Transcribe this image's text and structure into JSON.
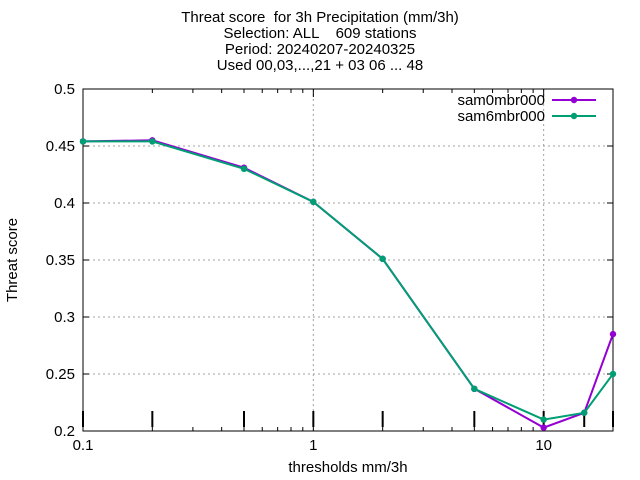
{
  "chart_data": {
    "type": "line",
    "title_lines": [
      "Threat score  for 3h Precipitation (mm/3h)",
      "Selection: ALL    609 stations",
      "Period: 20240207-20240325",
      "Used 00,03,...,21 + 03 06 ... 48"
    ],
    "xlabel": "thresholds mm/3h",
    "ylabel": "Threat score",
    "x_scale": "log",
    "xlim": [
      0.1,
      20
    ],
    "ylim": [
      0.2,
      0.5
    ],
    "x_ticks": [
      0.1,
      1,
      10
    ],
    "x_tick_labels": [
      "0.1",
      "1",
      "10"
    ],
    "y_ticks": [
      0.2,
      0.25,
      0.3,
      0.35,
      0.4,
      0.45,
      0.5
    ],
    "y_tick_labels": [
      "0.2",
      "0.25",
      "0.3",
      "0.35",
      "0.4",
      "0.45",
      "0.5"
    ],
    "grid": true,
    "legend_position": "top-right",
    "x": [
      0.1,
      0.2,
      0.5,
      1,
      2,
      5,
      10,
      15,
      20
    ],
    "series": [
      {
        "name": "sam0mbr000",
        "color": "#9400d3",
        "values": [
          0.454,
          0.455,
          0.431,
          0.401,
          0.351,
          0.237,
          0.203,
          0.216,
          0.285
        ]
      },
      {
        "name": "sam6mbr000",
        "color": "#009e73",
        "values": [
          0.454,
          0.454,
          0.43,
          0.401,
          0.351,
          0.237,
          0.21,
          0.216,
          0.25
        ]
      }
    ]
  }
}
